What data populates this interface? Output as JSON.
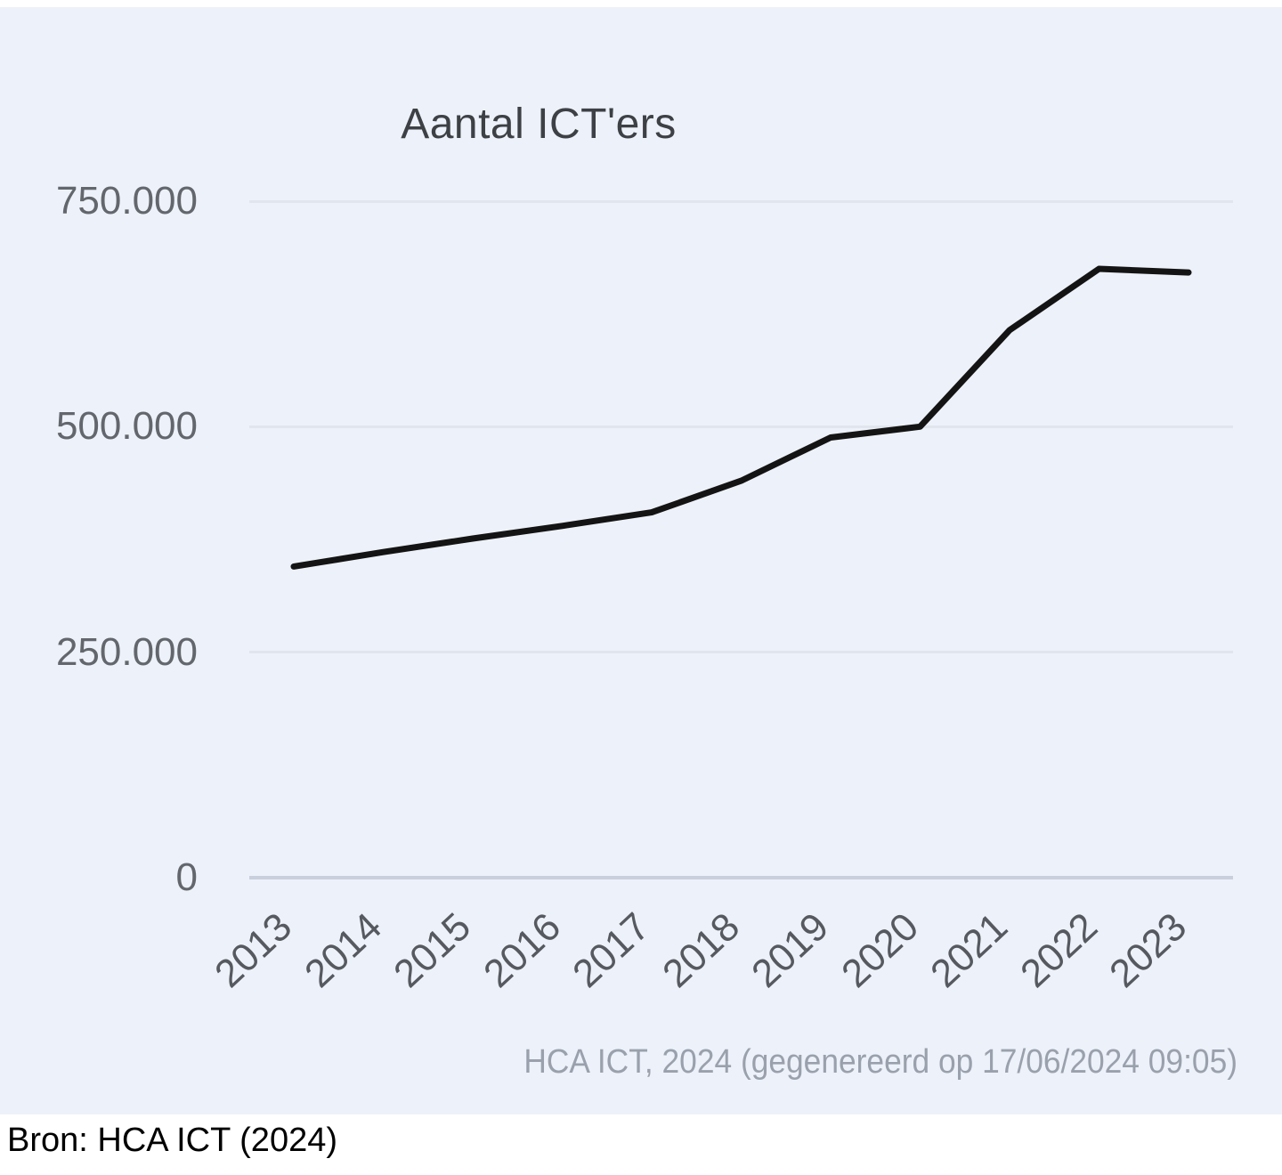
{
  "chart_data": {
    "type": "line",
    "title": "Aantal ICT'ers",
    "categories": [
      "2013",
      "2014",
      "2015",
      "2016",
      "2017",
      "2018",
      "2019",
      "2020",
      "2021",
      "2022",
      "2023"
    ],
    "series": [
      {
        "name": "Aantal ICT'ers",
        "values": [
          345000,
          361000,
          376000,
          390000,
          405000,
          440000,
          488000,
          500000,
          607000,
          675000,
          671000
        ]
      }
    ],
    "xlabel": "",
    "ylabel": "",
    "ylim": [
      0,
      750000
    ],
    "yticks": [
      {
        "value": 750000,
        "label": "750.000"
      },
      {
        "value": 500000,
        "label": "500.000"
      },
      {
        "value": 250000,
        "label": "250.000"
      },
      {
        "value": 0,
        "label": "0"
      }
    ],
    "grid": "horizontal",
    "legend": "none",
    "line_color": "#141414",
    "background_color": "#edf1f9",
    "caption": "HCA ICT, 2024 (gegenereerd op 17/06/2024 09:05)"
  },
  "footer": {
    "source": "Bron: HCA ICT (2024)"
  }
}
